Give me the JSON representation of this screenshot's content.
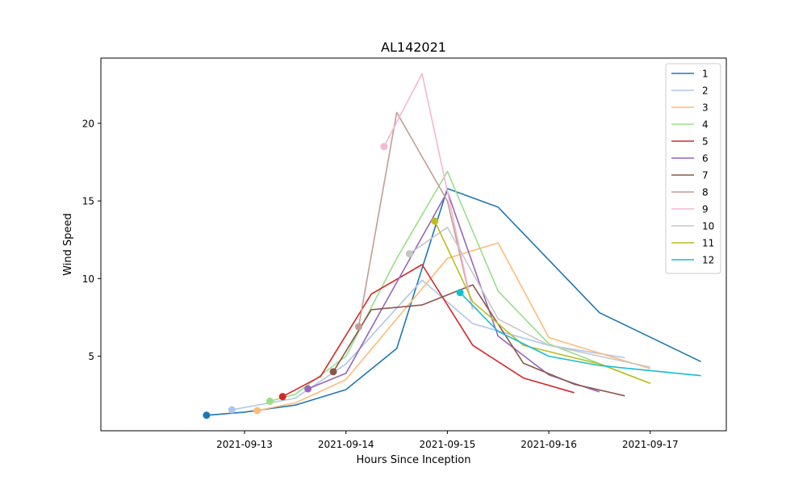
{
  "chart_data": {
    "type": "line",
    "title": "AL142021",
    "xlabel": "Hours Since Inception",
    "ylabel": "Wind Speed",
    "x_axis": {
      "start": "2021-09-11T14:00",
      "end": "2021-09-17T18:00",
      "ticks": [
        {
          "at": "2021-09-13T00:00",
          "label": "2021-09-13"
        },
        {
          "at": "2021-09-14T00:00",
          "label": "2021-09-14"
        },
        {
          "at": "2021-09-15T00:00",
          "label": "2021-09-15"
        },
        {
          "at": "2021-09-16T00:00",
          "label": "2021-09-16"
        },
        {
          "at": "2021-09-17T00:00",
          "label": "2021-09-17"
        }
      ]
    },
    "ylim": [
      0.2,
      24.2
    ],
    "yticks": [
      5,
      10,
      15,
      20
    ],
    "grid": false,
    "legend": "top-right",
    "series": [
      {
        "name": "1",
        "color": "#1f77b4",
        "points": [
          [
            "2021-09-12T15:00",
            1.2
          ],
          [
            "2021-09-13T00:00",
            1.4
          ],
          [
            "2021-09-13T12:00",
            1.85
          ],
          [
            "2021-09-14T00:00",
            2.85
          ],
          [
            "2021-09-14T12:00",
            5.5
          ],
          [
            "2021-09-15T00:00",
            15.8
          ],
          [
            "2021-09-15T12:00",
            14.6
          ],
          [
            "2021-09-16T12:00",
            7.8
          ],
          [
            "2021-09-17T12:00",
            4.65
          ]
        ]
      },
      {
        "name": "2",
        "color": "#aec7e8",
        "points": [
          [
            "2021-09-12T21:00",
            1.55
          ],
          [
            "2021-09-13T12:00",
            2.3
          ],
          [
            "2021-09-14T00:00",
            4.5
          ],
          [
            "2021-09-14T18:00",
            9.9
          ],
          [
            "2021-09-15T06:00",
            7.1
          ],
          [
            "2021-09-16T00:00",
            5.7
          ],
          [
            "2021-09-16T18:00",
            4.9
          ]
        ]
      },
      {
        "name": "3",
        "color": "#ffbb78",
        "points": [
          [
            "2021-09-13T03:00",
            1.5
          ],
          [
            "2021-09-13T12:00",
            2.0
          ],
          [
            "2021-09-14T00:00",
            3.5
          ],
          [
            "2021-09-15T00:00",
            11.3
          ],
          [
            "2021-09-15T12:00",
            12.3
          ],
          [
            "2021-09-16T00:00",
            6.2
          ],
          [
            "2021-09-17T00:00",
            4.2
          ]
        ]
      },
      {
        "name": "4",
        "color": "#98df8a",
        "points": [
          [
            "2021-09-13T06:00",
            2.1
          ],
          [
            "2021-09-13T12:00",
            2.55
          ],
          [
            "2021-09-14T00:00",
            5.0
          ],
          [
            "2021-09-14T12:00",
            11.3
          ],
          [
            "2021-09-15T00:00",
            16.9
          ],
          [
            "2021-09-15T12:00",
            9.2
          ],
          [
            "2021-09-16T00:00",
            5.8
          ],
          [
            "2021-09-17T00:00",
            3.25
          ]
        ]
      },
      {
        "name": "5",
        "color": "#d62728",
        "points": [
          [
            "2021-09-13T09:00",
            2.4
          ],
          [
            "2021-09-13T18:00",
            3.7
          ],
          [
            "2021-09-14T06:00",
            9.0
          ],
          [
            "2021-09-14T18:00",
            10.9
          ],
          [
            "2021-09-15T06:00",
            5.7
          ],
          [
            "2021-09-15T18:00",
            3.6
          ],
          [
            "2021-09-16T06:00",
            2.65
          ]
        ]
      },
      {
        "name": "6",
        "color": "#9467bd",
        "points": [
          [
            "2021-09-13T15:00",
            2.9
          ],
          [
            "2021-09-14T00:00",
            3.9
          ],
          [
            "2021-09-15T00:00",
            15.6
          ],
          [
            "2021-09-15T12:00",
            6.3
          ],
          [
            "2021-09-16T00:00",
            3.8
          ],
          [
            "2021-09-16T12:00",
            2.7
          ]
        ]
      },
      {
        "name": "7",
        "color": "#8c564b",
        "points": [
          [
            "2021-09-13T21:00",
            4.0
          ],
          [
            "2021-09-14T06:00",
            8.0
          ],
          [
            "2021-09-14T18:00",
            8.3
          ],
          [
            "2021-09-15T06:00",
            9.6
          ],
          [
            "2021-09-15T18:00",
            4.55
          ],
          [
            "2021-09-16T06:00",
            3.2
          ],
          [
            "2021-09-16T18:00",
            2.45
          ]
        ]
      },
      {
        "name": "8",
        "color": "#c49c94",
        "points": [
          [
            "2021-09-14T03:00",
            6.9
          ],
          [
            "2021-09-14T12:00",
            20.7
          ],
          [
            "2021-09-15T00:00",
            15.0
          ],
          [
            "2021-09-15T06:00",
            8.0
          ]
        ]
      },
      {
        "name": "9",
        "color": "#f7b6d2",
        "points": [
          [
            "2021-09-14T09:00",
            18.5
          ],
          [
            "2021-09-14T18:00",
            23.2
          ],
          [
            "2021-09-15T06:00",
            8.0
          ]
        ]
      },
      {
        "name": "10",
        "color": "#c7c7c7",
        "points": [
          [
            "2021-09-14T15:00",
            11.6
          ],
          [
            "2021-09-15T00:00",
            13.3
          ],
          [
            "2021-09-15T12:00",
            7.4
          ],
          [
            "2021-09-16T00:00",
            5.7
          ],
          [
            "2021-09-17T00:00",
            4.3
          ]
        ]
      },
      {
        "name": "11",
        "color": "#bcbd22",
        "points": [
          [
            "2021-09-14T21:00",
            13.7
          ],
          [
            "2021-09-15T06:00",
            8.5
          ],
          [
            "2021-09-15T18:00",
            5.7
          ],
          [
            "2021-09-16T12:00",
            4.5
          ],
          [
            "2021-09-17T00:00",
            3.25
          ]
        ]
      },
      {
        "name": "12",
        "color": "#17becf",
        "points": [
          [
            "2021-09-15T03:00",
            9.1
          ],
          [
            "2021-09-15T12:00",
            6.6
          ],
          [
            "2021-09-16T00:00",
            5.0
          ],
          [
            "2021-09-16T12:00",
            4.4
          ],
          [
            "2021-09-17T12:00",
            3.75
          ]
        ]
      }
    ]
  }
}
